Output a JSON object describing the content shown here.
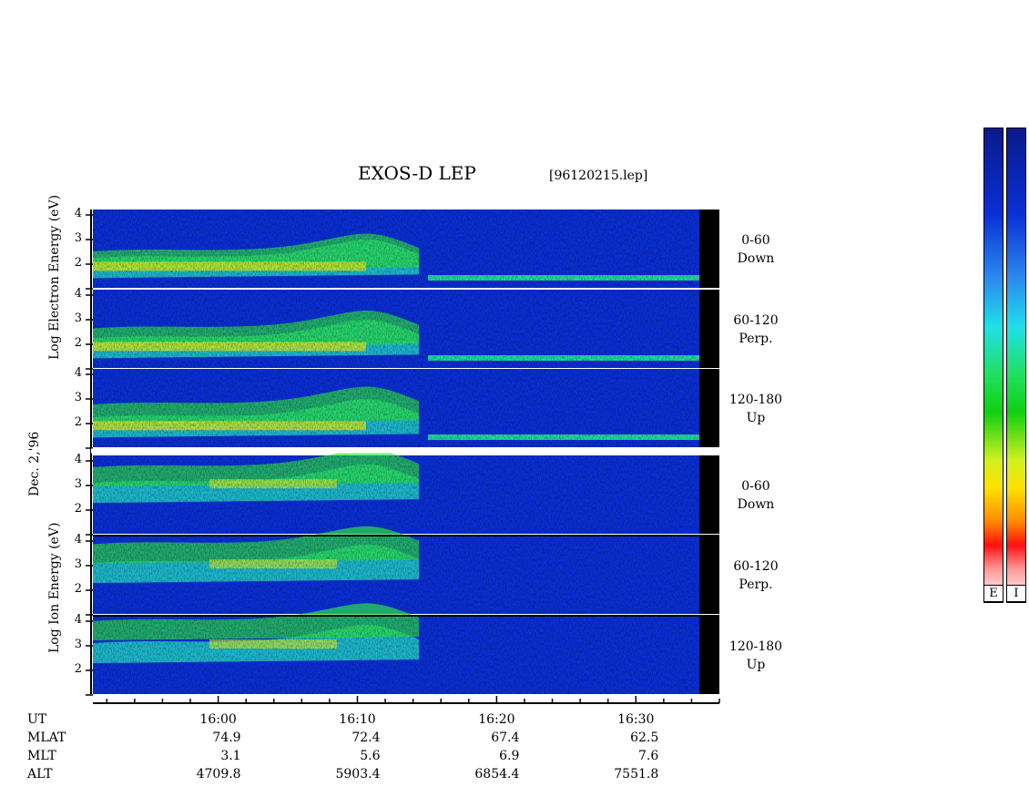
{
  "title": "EXOS-D LEP",
  "filename": "[96120215.lep]",
  "date_label": "Dec. 2,'96",
  "colors": {
    "background": "#0a2fd6",
    "data_gap": "#000000"
  },
  "chart_data": {
    "type": "heatmap",
    "time_range_ut": [
      "15:51",
      "16:36"
    ],
    "yticks": [
      [
        "4",
        "3",
        "2",
        ""
      ],
      [
        "4",
        "3",
        "2",
        ""
      ],
      [
        "4",
        "3",
        "2",
        ""
      ],
      [
        "4",
        "3",
        "2",
        ""
      ],
      [
        "4",
        "3",
        "2",
        ""
      ],
      [
        "4",
        "3",
        "2",
        ""
      ]
    ],
    "electron_ylabel": "Log Electron Energy (eV)",
    "ion_ylabel": "Log Ion Energy (eV)",
    "panels": [
      {
        "species": "Electron",
        "pitch_range": "0-60",
        "direction": "Down"
      },
      {
        "species": "Electron",
        "pitch_range": "60-120",
        "direction": "Perp."
      },
      {
        "species": "Electron",
        "pitch_range": "120-180",
        "direction": "Up"
      },
      {
        "species": "Ion",
        "pitch_range": "0-60",
        "direction": "Down"
      },
      {
        "species": "Ion",
        "pitch_range": "60-120",
        "direction": "Perp."
      },
      {
        "species": "Ion",
        "pitch_range": "120-180",
        "direction": "Up"
      }
    ],
    "ephemeris_labels": [
      "UT",
      "MLAT",
      "MLT",
      "ALT"
    ],
    "ephemeris": [
      {
        "UT": "16:00",
        "MLAT": "74.9",
        "MLT": "3.1",
        "ALT": "4709.8"
      },
      {
        "UT": "16:10",
        "MLAT": "72.4",
        "MLT": "5.6",
        "ALT": "5903.4"
      },
      {
        "UT": "16:20",
        "MLAT": "67.4",
        "MLT": "6.9",
        "ALT": "6854.4"
      },
      {
        "UT": "16:30",
        "MLAT": "62.5",
        "MLT": "7.6",
        "ALT": "7551.8"
      }
    ],
    "colorbar_labels": [
      "E",
      "I"
    ]
  }
}
